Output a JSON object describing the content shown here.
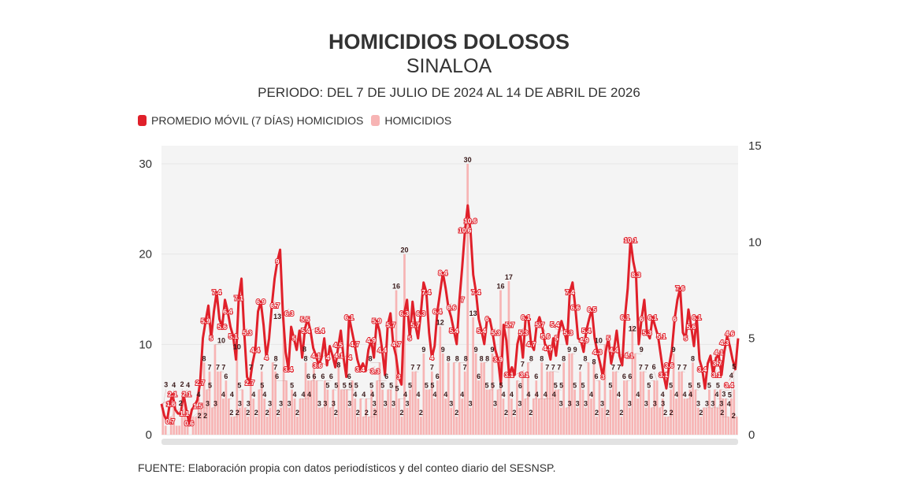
{
  "title": "HOMICIDIOS DOLOSOS",
  "subtitle": "SINALOA",
  "period": "PERIODO: DEL 7 DE JULIO DE 2024 AL 14 DE ABRIL DE 2026",
  "source": "FUENTE: Elaboración propia con datos periodísticos y del conteo diario del SESNSP.",
  "colors": {
    "line": "#e0202a",
    "bars": "#f7b4b4",
    "plot_bg": "#f4f4f4"
  },
  "chart_data": {
    "type": "bar+line",
    "title": "HOMICIDIOS DOLOSOS",
    "grid": true,
    "legend_placement": "top-left",
    "left_axis": {
      "ylim": [
        0,
        30
      ],
      "ticks": [
        "0",
        "10",
        "20",
        "30"
      ]
    },
    "right_axis": {
      "ylim": [
        0,
        15
      ],
      "ticks": [
        "0",
        "5",
        "10",
        "15"
      ]
    },
    "series": [
      {
        "name": "PROMEDIO MÓVIL (7 DÍAS) HOMICIDIOS",
        "type": "line",
        "axis": "right",
        "values": [
          1.6,
          1.0,
          0.7,
          1.6,
          2.1,
          1.3,
          1.1,
          1.1,
          2.1,
          1.3,
          0.6,
          1.3,
          1.5,
          1.8,
          2.7,
          5.0,
          5.9,
          6.7,
          5.0,
          6.4,
          7.4,
          6.0,
          5.6,
          7.0,
          6.4,
          5.6,
          5.1,
          3.9,
          7.1,
          8.1,
          5.3,
          3.0,
          2.7,
          3.7,
          4.4,
          6.4,
          6.9,
          5.7,
          4.0,
          5.0,
          6.7,
          8.1,
          9.0,
          9.6,
          6.3,
          4.3,
          3.4,
          5.6,
          5.0,
          4.4,
          5.4,
          4.0,
          5.5,
          6.0,
          5.4,
          4.5,
          4.1,
          3.6,
          4.0,
          5.0,
          3.6,
          4.6,
          4.1,
          3.5,
          4.5,
          5.4,
          4.0,
          3.0,
          6.1,
          5.4,
          4.7,
          3.9,
          3.4,
          3.7,
          3.3,
          4.4,
          4.9,
          4.0,
          5.9,
          5.4,
          4.4,
          3.1,
          5.7,
          6.3,
          4.7,
          4.1,
          3.0,
          2.6,
          6.3,
          7.0,
          5.0,
          6.9,
          5.7,
          5.0,
          6.3,
          7.9,
          7.4,
          5.3,
          4.0,
          4.6,
          6.4,
          7.4,
          8.4,
          7.6,
          6.6,
          6.1,
          5.4,
          4.7,
          7.0,
          8.7,
          10.6,
          11.9,
          10.6,
          8.3,
          7.4,
          6.0,
          5.4,
          4.7,
          6.0,
          6.0,
          5.3,
          4.4,
          3.9,
          2.6,
          5.7,
          4.9,
          3.1,
          3.5,
          3.1,
          4.7,
          5.3,
          4.0,
          6.1,
          6.0,
          4.7,
          4.4,
          5.7,
          6.1,
          5.6,
          4.7,
          4.5,
          3.9,
          5.0,
          4.1,
          5.3,
          5.9,
          5.4,
          4.7,
          7.4,
          7.9,
          6.6,
          5.0,
          4.9,
          4.3,
          5.4,
          6.0,
          6.5,
          5.0,
          4.3,
          3.7,
          3.0,
          4.3,
          5.0,
          3.7,
          4.4,
          5.4,
          4.1,
          3.6,
          6.1,
          7.6,
          10.1,
          9.0,
          8.3,
          4.7,
          6.0,
          7.0,
          5.3,
          5.0,
          6.1,
          5.6,
          5.1,
          4.1,
          3.1,
          2.4,
          3.6,
          4.4,
          6.0,
          7.0,
          7.6,
          5.3,
          5.0,
          6.5,
          5.6,
          4.6,
          6.1,
          3.9,
          3.4,
          2.4,
          3.7,
          4.1,
          3.1,
          4.0,
          4.1,
          3.1,
          4.3,
          5.1,
          4.6,
          3.9,
          3.4,
          5.0
        ]
      },
      {
        "name": "HOMICIDIOS",
        "type": "bar",
        "axis": "left",
        "values": [
          3,
          1,
          0,
          2,
          4,
          1,
          1,
          2,
          4,
          1,
          0,
          2,
          2,
          4,
          3,
          8,
          5,
          7,
          3,
          10,
          7,
          7,
          4,
          6,
          4,
          2,
          2,
          10,
          3,
          5,
          3,
          2,
          7,
          4,
          2,
          5,
          7,
          4,
          2,
          3,
          8,
          7,
          2,
          3,
          13,
          6,
          3,
          5,
          4,
          2,
          4,
          4,
          8,
          6,
          6,
          8,
          6,
          3,
          3,
          6,
          5,
          3,
          5,
          2,
          8,
          5,
          5,
          5,
          3,
          6,
          4,
          2,
          4,
          2,
          4,
          2,
          5,
          3,
          6,
          8,
          5,
          3,
          5,
          5,
          3,
          16,
          4,
          2,
          20,
          3,
          5,
          7,
          7,
          4,
          2,
          9,
          5,
          5,
          7,
          4,
          6,
          12,
          9,
          4,
          8,
          3,
          8,
          2,
          8,
          4,
          7,
          30,
          3,
          13,
          9,
          6,
          8,
          8,
          5,
          5,
          9,
          3,
          5,
          16,
          4,
          2,
          17,
          4,
          2,
          6,
          3,
          7,
          4,
          8,
          2,
          4,
          6,
          4,
          8,
          4,
          7,
          7,
          7,
          5,
          5,
          3,
          8,
          3,
          9,
          9,
          5,
          3,
          7,
          5,
          3,
          8,
          4,
          8,
          2,
          6,
          3,
          10,
          2,
          5,
          7,
          7,
          4,
          2,
          6,
          6,
          3,
          12,
          9,
          4,
          7,
          7,
          3,
          5,
          3,
          6,
          6,
          3,
          4,
          2,
          2,
          5,
          9,
          4,
          7,
          7,
          4,
          4,
          5,
          8,
          5,
          3,
          2,
          3,
          3,
          5,
          3,
          5,
          3,
          5,
          4,
          4,
          2,
          4,
          5,
          2
        ]
      }
    ]
  }
}
